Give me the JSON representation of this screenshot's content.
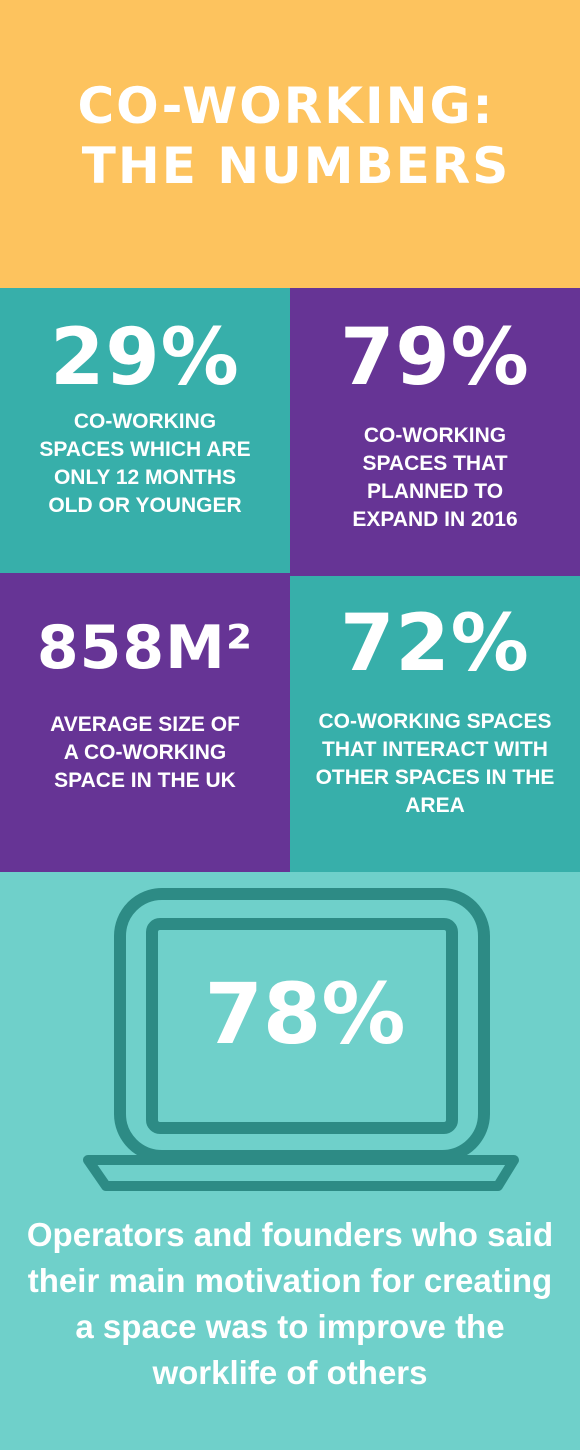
{
  "header": {
    "title_line1": "CO-WORKING:",
    "title_line2": "THE NUMBERS"
  },
  "tiles": [
    {
      "stat": "29%",
      "text": "CO-WORKING SPACES WHICH ARE ONLY 12 MONTHS OLD OR YOUNGER"
    },
    {
      "stat": "79%",
      "text": "CO-WORKING SPACES  THAT PLANNED TO EXPAND IN 2016"
    },
    {
      "stat": "858M²",
      "text": "AVERAGE SIZE OF A CO-WORKING SPACE IN THE UK"
    },
    {
      "stat": "72%",
      "text": "CO-WORKING SPACES THAT INTERACT WITH OTHER SPACES IN THE AREA"
    }
  ],
  "feature": {
    "icon": "laptop-icon",
    "stat": "78%",
    "caption": "Operators and founders who said their main motivation for creating a space was to improve the worklife of others"
  },
  "colors": {
    "header": "#fdc35e",
    "teal": "#37afaa",
    "purple": "#663495",
    "light_teal": "#6fd0ca",
    "laptop_stroke": "#2d8b85"
  }
}
